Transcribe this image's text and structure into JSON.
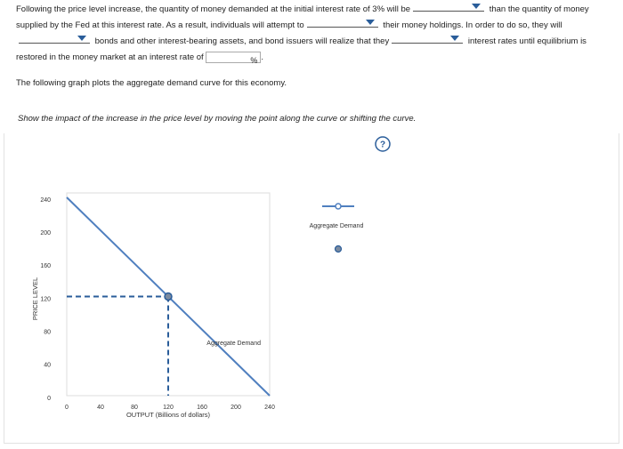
{
  "question": {
    "parts": [
      "Following the price level increase, the quantity of money demanded at the initial interest rate of 3% will be",
      "than the quantity of money supplied by the Fed at this interest rate. As a result, individuals will attempt to",
      "their money holdings. In order to do so, they will",
      "bonds and other interest-bearing assets, and bond issuers will realize that they",
      "interest rates until equilibrium is restored in the money market at an interest rate of"
    ],
    "unit": "%",
    "end": "."
  },
  "graph_intro": "The following graph plots the aggregate demand curve for this economy.",
  "instruction": "Show the impact of the increase in the price level by moving the point along the curve or shifting the curve.",
  "help": "?",
  "chart_data": {
    "type": "line",
    "xlabel": "OUTPUT (Billions of dollars)",
    "ylabel": "PRICE LEVEL",
    "xlim": [
      0,
      240
    ],
    "ylim": [
      0,
      240
    ],
    "xticks": [
      0,
      40,
      80,
      120,
      160,
      200,
      240
    ],
    "yticks": [
      0,
      40,
      80,
      120,
      160,
      200,
      240
    ],
    "series": [
      {
        "name": "Aggregate Demand",
        "color": "#4f7fbf",
        "x": [
          0,
          240
        ],
        "values": [
          240,
          0
        ]
      }
    ],
    "point": {
      "x": 120,
      "y": 120,
      "color": "#7a8aa0"
    }
  }
}
